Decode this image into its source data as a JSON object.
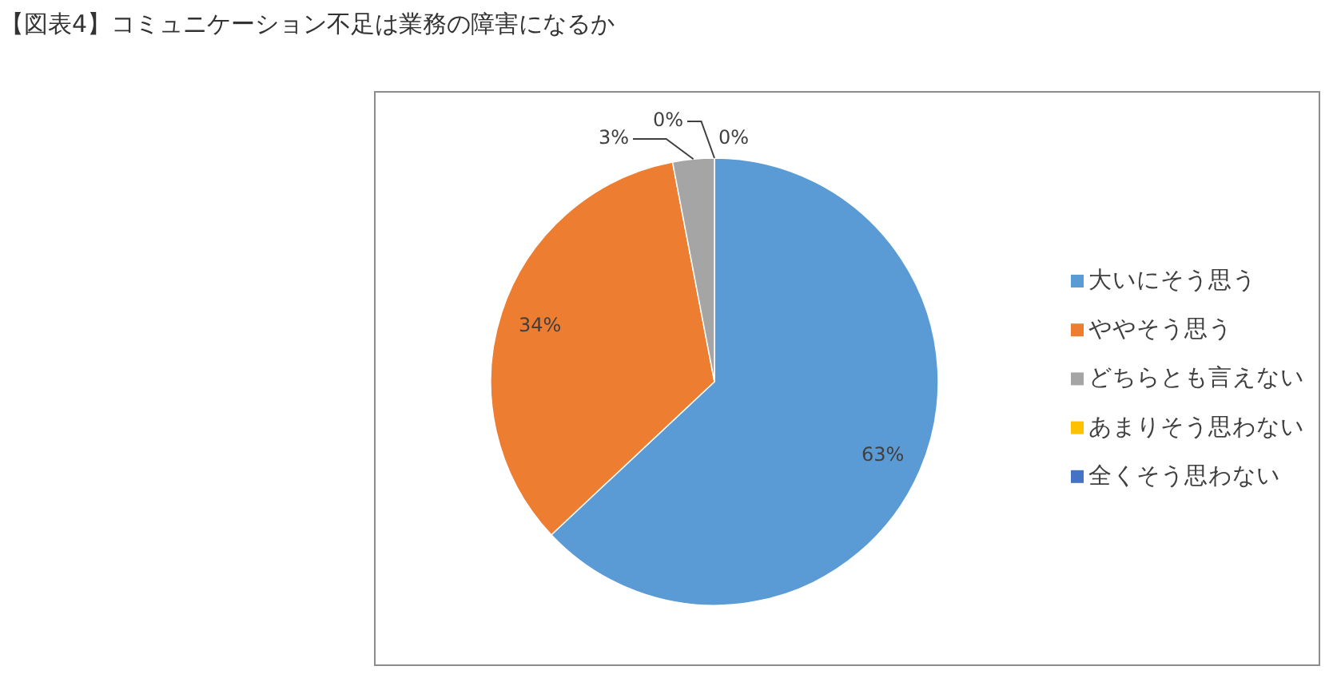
{
  "chart_data": {
    "type": "pie",
    "title": "【図表4】コミュニケーション不足は業務の障害になるか",
    "categories": [
      "大いにそう思う",
      "ややそう思う",
      "どちらとも言えない",
      "あまりそう思わない",
      "全くそう思わない"
    ],
    "values": [
      63,
      34,
      3,
      0,
      0
    ],
    "colors": [
      "#5b9bd5",
      "#ed7d31",
      "#a5a5a5",
      "#ffc000",
      "#4472c4"
    ],
    "value_labels": [
      "63%",
      "34%",
      "3%",
      "0%",
      "0%"
    ],
    "legend": "right"
  }
}
